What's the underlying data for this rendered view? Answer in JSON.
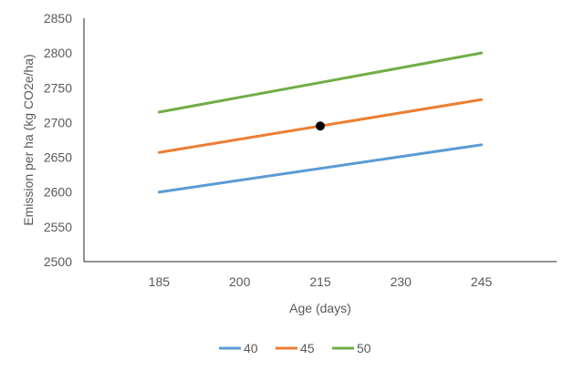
{
  "chart_data": {
    "type": "line",
    "title": "",
    "xlabel": "Age (days)",
    "ylabel": "Emission per ha (kg CO2e/ha)",
    "x": [
      185,
      245
    ],
    "xticks": [
      185,
      200,
      215,
      230,
      245
    ],
    "xlim": [
      171,
      259
    ],
    "ylim": [
      2500,
      2850
    ],
    "yticks": [
      2500,
      2550,
      2600,
      2650,
      2700,
      2750,
      2800,
      2850
    ],
    "grid": false,
    "legend_position": "bottom",
    "series": [
      {
        "name": "40",
        "color": "#5b9bd5",
        "values": [
          2600,
          2668
        ]
      },
      {
        "name": "45",
        "color": "#ed7d31",
        "values": [
          2657,
          2733
        ]
      },
      {
        "name": "50",
        "color": "#70ad47",
        "values": [
          2715,
          2800
        ]
      }
    ],
    "marker": {
      "x": 215,
      "y": 2695,
      "color": "#000000"
    }
  }
}
